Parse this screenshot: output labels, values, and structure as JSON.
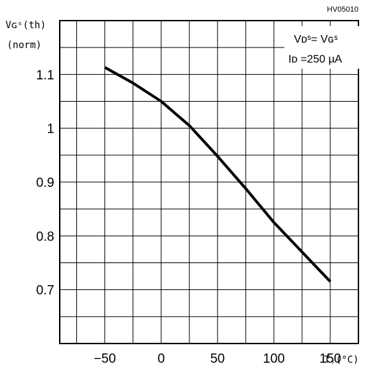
{
  "chart_data": {
    "type": "line",
    "figure_code": "HV05010",
    "ylabel_line1": "Vɢˢ(th)",
    "ylabel_line2": "(norm)",
    "xlabel": "Tⱼ(°C)",
    "conditions": [
      "Vᴅˢ= Vɢˢ",
      "Iᴅ =250 µA"
    ],
    "xlim": [
      -90,
      175
    ],
    "ylim": [
      0.6,
      1.2
    ],
    "xticks": [
      -50,
      0,
      50,
      100,
      150
    ],
    "xtick_labels": [
      "−50",
      "0",
      "50",
      "100",
      "150"
    ],
    "yticks": [
      0.7,
      0.8,
      0.9,
      1.0,
      1.1
    ],
    "ytick_labels": [
      "0.7",
      "0.8",
      "0.9",
      "1",
      "1.1"
    ],
    "grid": true,
    "series": [
      {
        "x": [
          -50,
          -25,
          0,
          25,
          50,
          75,
          100,
          125,
          150
        ],
        "y": [
          1.113,
          1.084,
          1.05,
          1.005,
          0.948,
          0.888,
          0.825,
          0.77,
          0.715
        ]
      }
    ]
  }
}
